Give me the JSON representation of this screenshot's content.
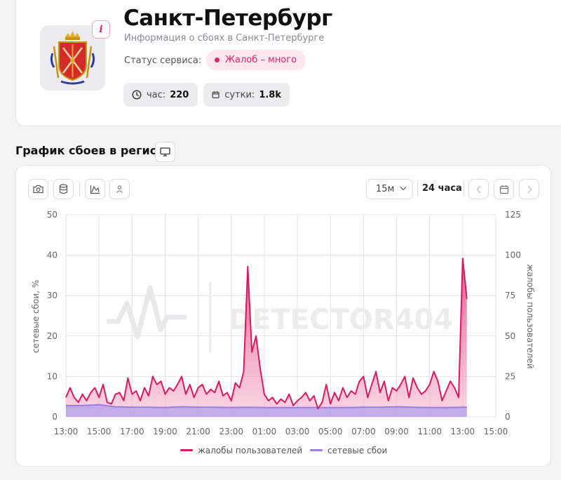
{
  "header": {
    "title": "Санкт-Петербург",
    "subtitle": "Информация о сбоях в Санкт-Петербурге",
    "info_icon": "i",
    "status_label": "Статус сервиса:",
    "status_value": "Жалоб – много",
    "stats": [
      {
        "label": "час:",
        "value": "220",
        "icon": "clock-icon"
      },
      {
        "label": "сутки:",
        "value": "1.8k",
        "icon": "calendar-icon"
      }
    ]
  },
  "section": {
    "title": "График сбоев в регионе"
  },
  "toolbar": {
    "interval": "15м",
    "range": "24 часа"
  },
  "colors": {
    "accent": "#e0226e",
    "complaints": "#d81b60",
    "network": "#9a7fe0"
  },
  "watermark": "DETECTOR404",
  "chart_data": {
    "type": "area",
    "x_ticks": [
      "13:00",
      "15:00",
      "17:00",
      "19:00",
      "21:00",
      "23:00",
      "01:00",
      "03:00",
      "05:00",
      "07:00",
      "09:00",
      "11:00",
      "13:00",
      "15:00"
    ],
    "y_left": {
      "label": "сетевые сбои, %",
      "ticks": [
        0,
        10,
        20,
        30,
        40,
        50
      ],
      "lim": [
        0,
        50
      ]
    },
    "y_right": {
      "label": "жалобы пользователей",
      "ticks": [
        0,
        25,
        50,
        75,
        100,
        125
      ],
      "lim": [
        0,
        125
      ]
    },
    "grid": true,
    "legend_position": "bottom",
    "series": [
      {
        "name": "жалобы пользователей",
        "axis": "right",
        "x_hours": [
          0,
          0.25,
          0.5,
          0.75,
          1,
          1.25,
          1.5,
          1.75,
          2,
          2.25,
          2.5,
          2.75,
          3,
          3.25,
          3.5,
          3.75,
          4,
          4.25,
          4.5,
          4.75,
          5,
          5.25,
          5.5,
          5.75,
          6,
          6.25,
          6.5,
          6.75,
          7,
          7.25,
          7.5,
          7.75,
          8,
          8.25,
          8.5,
          8.75,
          9,
          9.25,
          9.5,
          9.75,
          10,
          10.25,
          10.5,
          10.75,
          11,
          11.25,
          11.5,
          11.75,
          12,
          12.25,
          12.5,
          12.75,
          13,
          13.25,
          13.5,
          13.75,
          14,
          14.25,
          14.5,
          14.75,
          15,
          15.25,
          15.5,
          15.75,
          16,
          16.25,
          16.5,
          16.75,
          17,
          17.25,
          17.5,
          17.75,
          18,
          18.25,
          18.5,
          18.75,
          19,
          19.25,
          19.5,
          19.75,
          20,
          20.25,
          20.5,
          20.75,
          21,
          21.25,
          21.5,
          21.75,
          22,
          22.25,
          22.5,
          22.75,
          23,
          23.25,
          23.5,
          23.75,
          24,
          24.25
        ],
        "values": [
          12,
          18,
          12,
          9,
          14,
          10,
          15,
          18,
          12,
          20,
          9,
          8,
          14,
          15,
          10,
          24,
          14,
          16,
          10,
          18,
          13,
          25,
          20,
          22,
          14,
          18,
          16,
          20,
          25,
          14,
          20,
          12,
          18,
          20,
          14,
          17,
          15,
          22,
          13,
          15,
          10,
          21,
          18,
          28,
          93,
          40,
          50,
          30,
          14,
          10,
          12,
          8,
          11,
          9,
          14,
          7,
          10,
          12,
          15,
          10,
          13,
          5,
          9,
          20,
          8,
          15,
          10,
          18,
          12,
          16,
          14,
          22,
          25,
          12,
          20,
          28,
          15,
          22,
          10,
          18,
          16,
          20,
          25,
          12,
          24,
          18,
          14,
          16,
          20,
          28,
          22,
          10,
          16,
          22,
          18,
          12,
          98,
          73
        ],
        "color": "#d81b60"
      },
      {
        "name": "сетевые сбои",
        "axis": "left",
        "x_hours": [
          0,
          1,
          2,
          3,
          4,
          5,
          6,
          7,
          8,
          9,
          10,
          11,
          12,
          13,
          14,
          15,
          16,
          17,
          18,
          19,
          20,
          21,
          22,
          23,
          24,
          24.25
        ],
        "values": [
          2.8,
          2.8,
          3,
          2.5,
          2.4,
          2.4,
          2.3,
          2.5,
          2.4,
          2.4,
          2.3,
          2.4,
          2.3,
          2.3,
          2.3,
          2.3,
          2.3,
          2.3,
          2.4,
          2.4,
          2.5,
          2.4,
          2.3,
          2.3,
          2.4,
          2.4
        ],
        "color": "#9a7fe0"
      }
    ]
  }
}
